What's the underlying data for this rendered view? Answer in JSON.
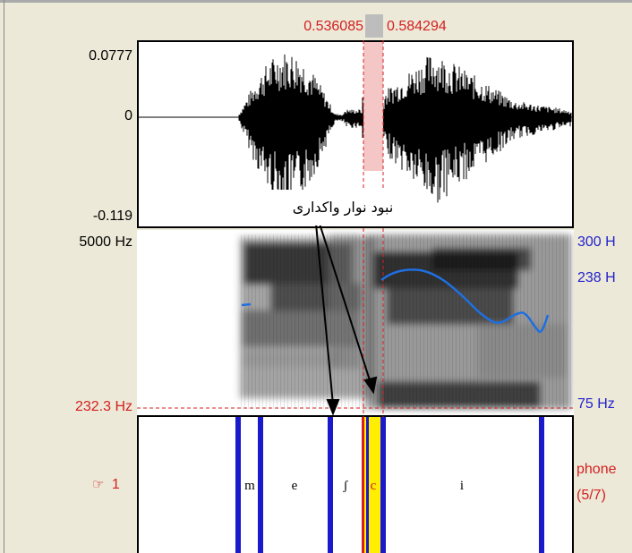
{
  "selection": {
    "start_time": "0.536085",
    "end_time": "0.584294"
  },
  "waveform": {
    "y_max_label": "0.0777",
    "y_zero_label": "0",
    "y_min_label": "-0.119"
  },
  "spectrogram": {
    "freq_max_label": "5000 Hz",
    "cursor_freq_label": "232.3 Hz",
    "pitch_max_label": "300 H",
    "pitch_mid_label": "238 H",
    "pitch_min_label": "75 Hz"
  },
  "annotation": {
    "text": "نبود نوار واکداری"
  },
  "textgrid": {
    "tier_number": "1",
    "tier_name": "phone",
    "tier_count": "(5/7)",
    "pointer_icon": "pointing-hand-icon",
    "phonemes": [
      {
        "label": "m"
      },
      {
        "label": "e"
      },
      {
        "label": "ʃ"
      },
      {
        "label": "c"
      },
      {
        "label": "i"
      }
    ]
  },
  "colors": {
    "selection_fill": "#f5c6c6",
    "boundary": "#1a1acc",
    "selected_interval": "#ffee00",
    "pitch_curve": "#1f6fe0",
    "cursor": "#d42020"
  }
}
